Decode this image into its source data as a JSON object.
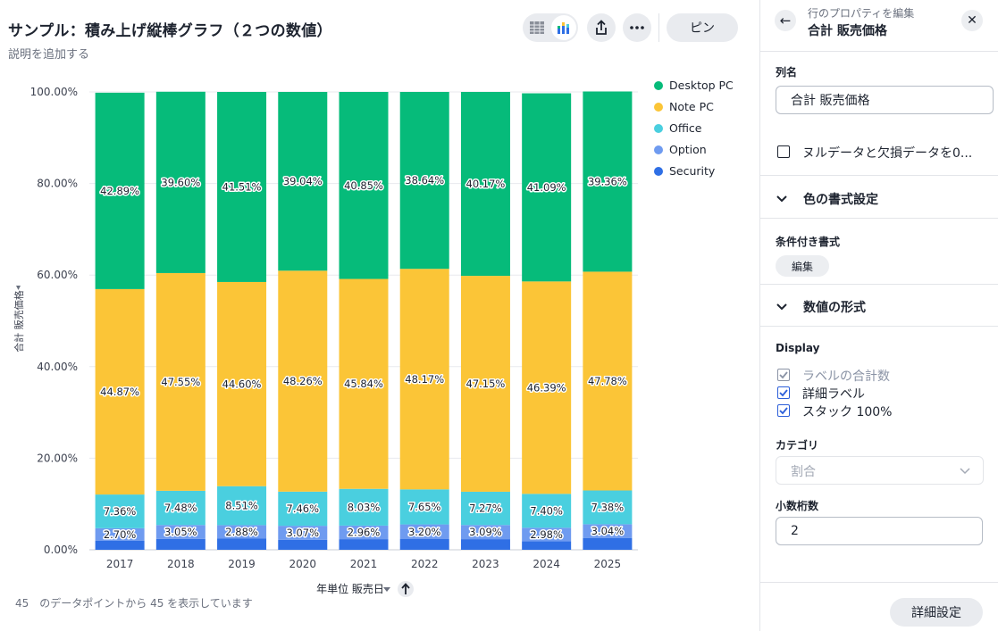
{
  "header": {
    "title": "サンプル：積み上げ縦棒グラフ（２つの数値）",
    "subtitle": "説明を追加する",
    "pin_label": "ピン"
  },
  "footer": {
    "count_text": "45　のデータポイントから 45 を表示しています"
  },
  "chart_data": {
    "type": "bar",
    "stacked": true,
    "percent_stacked": true,
    "categories": [
      "2017",
      "2018",
      "2019",
      "2020",
      "2021",
      "2022",
      "2023",
      "2024",
      "2025"
    ],
    "series": [
      {
        "name": "Security",
        "color": "#2f6fe5",
        "values": [
          2.01,
          2.36,
          2.5,
          2.17,
          2.32,
          2.34,
          2.32,
          1.84,
          2.54
        ]
      },
      {
        "name": "Option",
        "color": "#6f9bf0",
        "values": [
          2.7,
          3.05,
          2.88,
          3.07,
          2.96,
          3.2,
          3.09,
          2.98,
          3.04
        ]
      },
      {
        "name": "Office",
        "color": "#4acfdf",
        "values": [
          7.36,
          7.48,
          8.51,
          7.46,
          8.03,
          7.65,
          7.27,
          7.4,
          7.38
        ]
      },
      {
        "name": "Note PC",
        "color": "#fbc537",
        "values": [
          44.87,
          47.55,
          44.6,
          48.26,
          45.84,
          48.17,
          47.15,
          46.39,
          47.78
        ]
      },
      {
        "name": "Desktop PC",
        "color": "#06bb7a",
        "values": [
          42.89,
          39.6,
          41.51,
          39.04,
          40.85,
          38.64,
          40.17,
          41.09,
          39.36
        ]
      }
    ],
    "labeled_series": [
      "Option",
      "Office",
      "Note PC",
      "Desktop PC"
    ],
    "legend_order": [
      "Desktop PC",
      "Note PC",
      "Office",
      "Option",
      "Security"
    ],
    "legend_position": "top-right",
    "ylim": [
      0,
      100
    ],
    "yticks": [
      "0.00%",
      "20.00%",
      "40.00%",
      "60.00%",
      "80.00%",
      "100.00%"
    ],
    "ylabel": "合計 販売価格",
    "xlabel": "年単位 販売日",
    "grid": true
  },
  "panel": {
    "kicker": "行のプロパティを編集",
    "heading": "合計 販売価格",
    "column_name_label": "列名",
    "column_name_value": "合計 販売価格",
    "null_checkbox_label": "ヌルデータと欠損データを0...",
    "color_section": "色の書式設定",
    "conditional_label": "条件付き書式",
    "edit_chip": "編集",
    "number_section": "数値の形式",
    "display_label": "Display",
    "display_options": [
      {
        "label": "ラベルの合計数",
        "checked": true,
        "disabled": true
      },
      {
        "label": "詳細ラベル",
        "checked": true,
        "disabled": false
      },
      {
        "label": "スタック 100%",
        "checked": true,
        "disabled": false
      }
    ],
    "category_label": "カテゴリ",
    "category_value": "割合",
    "decimals_label": "小数桁数",
    "decimals_value": "2",
    "advanced_button": "詳細設定"
  },
  "colors": {
    "accent": "#2c5fd9",
    "text": "#1d232f",
    "muted": "#6a707e"
  }
}
